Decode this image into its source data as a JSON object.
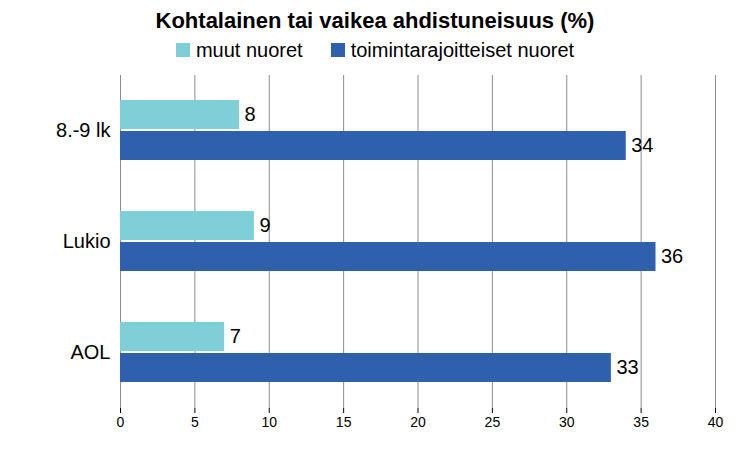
{
  "chart_data": {
    "type": "bar",
    "title": "Kohtalainen tai vaikea ahdistuneisuus (%)",
    "orientation": "horizontal",
    "categories": [
      "8.-9 lk",
      "Lukio",
      "AOL"
    ],
    "series": [
      {
        "name": "muut nuoret",
        "color": "#7ECFD8",
        "values": [
          8,
          9,
          7
        ]
      },
      {
        "name": "toimintarajoitteiset nuoret",
        "color": "#2E60AE",
        "values": [
          34,
          36,
          33
        ]
      }
    ],
    "xlim": [
      0,
      40
    ],
    "xticks": [
      0,
      5,
      10,
      15,
      20,
      25,
      30,
      35,
      40
    ],
    "grid": true,
    "legend": "top",
    "data_labels": true
  }
}
